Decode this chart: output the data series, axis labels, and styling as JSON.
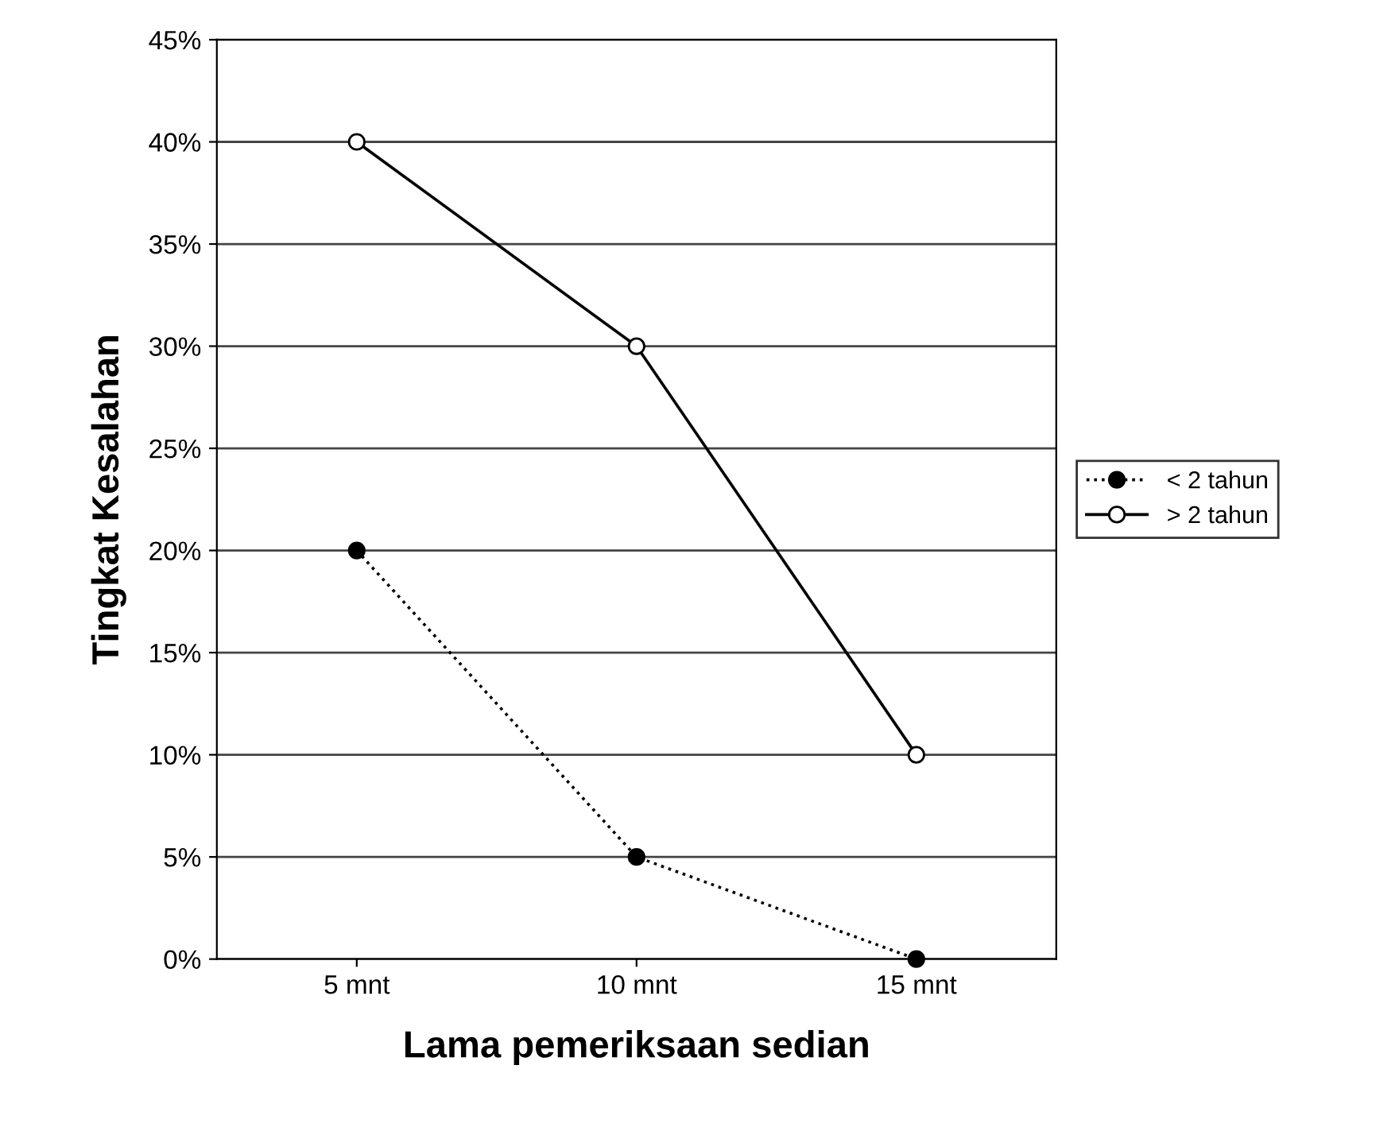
{
  "chart_data": {
    "type": "line",
    "xlabel": "Lama pemeriksaan sedian",
    "ylabel": "Tingkat Kesalahan",
    "categories": [
      "5 mnt",
      "10 mnt",
      "15 mnt"
    ],
    "series": [
      {
        "name": "< 2 tahun",
        "color": "#000000",
        "values": [
          20,
          5,
          0
        ],
        "line_style": "dotted"
      },
      {
        "name": "> 2 tahun",
        "color": "#000000",
        "values": [
          40,
          30,
          10
        ],
        "line_style": "solid"
      }
    ],
    "ylim": [
      0,
      45
    ],
    "yticks": [
      {
        "value": 0,
        "label": "0%"
      },
      {
        "value": 5,
        "label": "5%"
      },
      {
        "value": 10,
        "label": "10%"
      },
      {
        "value": 15,
        "label": "15%"
      },
      {
        "value": 20,
        "label": "20%"
      },
      {
        "value": 25,
        "label": "25%"
      },
      {
        "value": 30,
        "label": "30%"
      },
      {
        "value": 35,
        "label": "35%"
      },
      {
        "value": 40,
        "label": "40%"
      },
      {
        "value": 45,
        "label": "45%"
      }
    ],
    "grid": "y",
    "legend": "right",
    "marker": "circle"
  }
}
